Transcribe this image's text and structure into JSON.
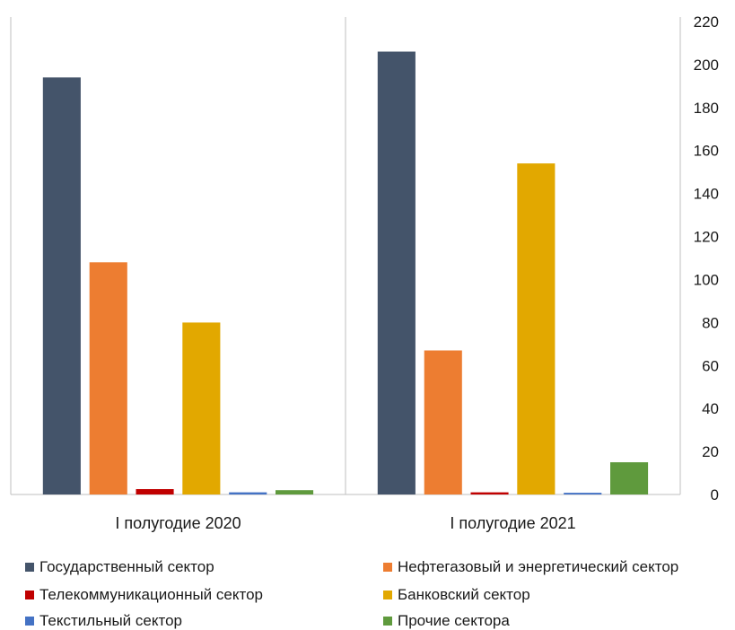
{
  "chart_data": {
    "type": "bar",
    "categories": [
      "I полугодие 2020",
      "I полугодие 2021"
    ],
    "series": [
      {
        "name": "Государственный сектор",
        "values": [
          194,
          206
        ],
        "color": "#44546A"
      },
      {
        "name": "Нефтегазовый и энергетический сектор",
        "values": [
          108,
          67
        ],
        "color": "#ED7D31"
      },
      {
        "name": "Телекоммуникационный сектор",
        "values": [
          2.5,
          1
        ],
        "color": "#C00000"
      },
      {
        "name": "Банковский сектор",
        "values": [
          80,
          154
        ],
        "color": "#E2A800"
      },
      {
        "name": "Текстильный сектор",
        "values": [
          1,
          0.8
        ],
        "color": "#4472C4"
      },
      {
        "name": "Прочие сектора",
        "values": [
          2,
          15
        ],
        "color": "#5F9A3D"
      }
    ],
    "ylim": [
      0,
      220
    ],
    "yticks": [
      0,
      20,
      40,
      60,
      80,
      100,
      120,
      140,
      160,
      180,
      200,
      220
    ],
    "y_axis_side": "right",
    "grid": false,
    "legend_position": "bottom"
  }
}
